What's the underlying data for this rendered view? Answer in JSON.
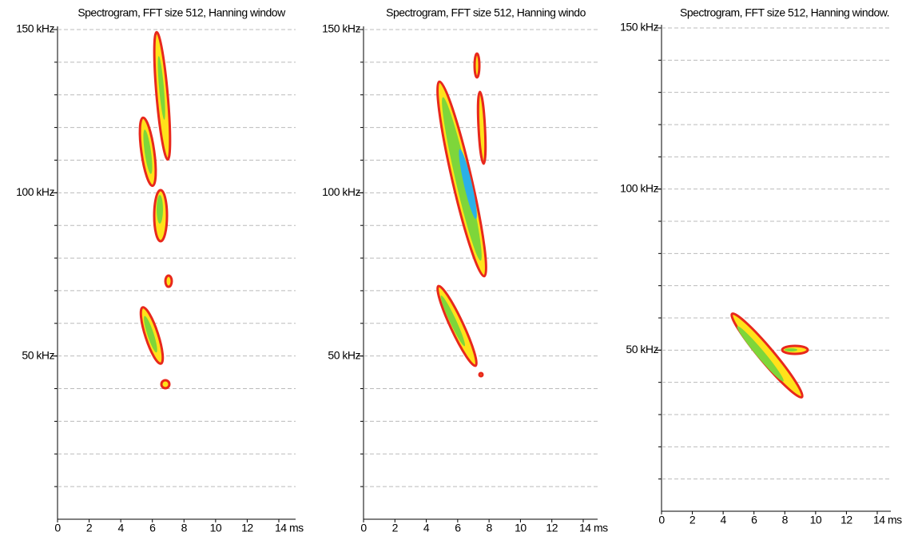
{
  "chart_data": [
    {
      "type": "spectrogram",
      "title": "Spectrogram, FFT size 512, Hanning window",
      "xlim": [
        0,
        15
      ],
      "xticks": [
        0,
        2,
        4,
        6,
        8,
        10,
        12,
        {
          "value": 14,
          "label": "14 ms"
        }
      ],
      "ylim": [
        0,
        150
      ],
      "yticks": [
        {
          "value": 50,
          "label": "50 kHz"
        },
        {
          "value": 100,
          "label": "100 kHz"
        },
        {
          "value": 150,
          "label": "150 kHz"
        }
      ],
      "ygrid": [
        10,
        20,
        30,
        40,
        50,
        60,
        70,
        80,
        90,
        100,
        110,
        120,
        130,
        140,
        150
      ]
    },
    {
      "type": "spectrogram",
      "title": "Spectrogram, FFT size 512, Hanning windo",
      "xlim": [
        0,
        15
      ],
      "xticks": [
        0,
        2,
        4,
        6,
        8,
        10,
        12,
        {
          "value": 14,
          "label": "14 ms"
        }
      ],
      "ylim": [
        0,
        150
      ],
      "yticks": [
        {
          "value": 50,
          "label": "50 kHz"
        },
        {
          "value": 100,
          "label": "100 kHz"
        },
        {
          "value": 150,
          "label": "150 kHz"
        }
      ],
      "ygrid": [
        10,
        20,
        30,
        40,
        50,
        60,
        70,
        80,
        90,
        100,
        110,
        120,
        130,
        140,
        150
      ]
    },
    {
      "type": "spectrogram",
      "title": "Spectrogram, FFT size 512, Hanning window.",
      "xlim": [
        0,
        15
      ],
      "xticks": [
        0,
        2,
        4,
        6,
        8,
        10,
        12,
        {
          "value": 14,
          "label": "14 ms"
        }
      ],
      "ylim": [
        0,
        150
      ],
      "yticks": [
        {
          "value": 50,
          "label": "50 kHz"
        },
        {
          "value": 100,
          "label": "100 kHz"
        },
        {
          "value": 150,
          "label": "150 kHz"
        }
      ],
      "ygrid": [
        10,
        20,
        30,
        40,
        50,
        60,
        70,
        80,
        90,
        100,
        110,
        120,
        130,
        140,
        150
      ]
    }
  ]
}
